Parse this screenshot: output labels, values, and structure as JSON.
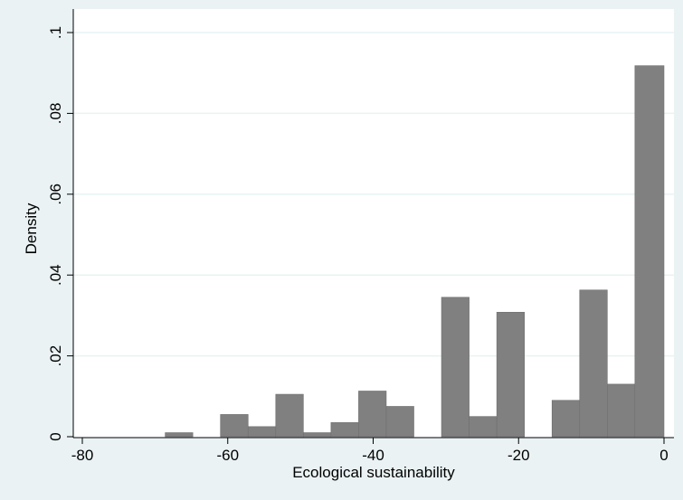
{
  "chart_data": {
    "type": "bar",
    "title": "",
    "xlabel": "Ecological sustainability",
    "ylabel": "Density",
    "xlim": [
      -80,
      0
    ],
    "ylim": [
      0,
      0.1
    ],
    "grid": true,
    "x_ticks": [
      -80,
      -60,
      -40,
      -20,
      0
    ],
    "x_tick_labels": [
      "-80",
      "-60",
      "-40",
      "-20",
      "0"
    ],
    "y_ticks": [
      0,
      0.02,
      0.04,
      0.06,
      0.08,
      0.1
    ],
    "y_tick_labels": [
      "0",
      ".02",
      ".04",
      ".06",
      ".08",
      ".1"
    ],
    "bin_width": 3.8,
    "bins": [
      {
        "x0": -80.0,
        "x1": -76.2,
        "value": 0.0
      },
      {
        "x0": -76.2,
        "x1": -72.4,
        "value": 0.0
      },
      {
        "x0": -72.4,
        "x1": -68.6,
        "value": 0.0
      },
      {
        "x0": -68.6,
        "x1": -64.8,
        "value": 0.001
      },
      {
        "x0": -64.8,
        "x1": -61.0,
        "value": 0.0
      },
      {
        "x0": -61.0,
        "x1": -57.2,
        "value": 0.0055
      },
      {
        "x0": -57.2,
        "x1": -53.4,
        "value": 0.0025
      },
      {
        "x0": -53.4,
        "x1": -49.6,
        "value": 0.0105
      },
      {
        "x0": -49.6,
        "x1": -45.8,
        "value": 0.001
      },
      {
        "x0": -45.8,
        "x1": -42.0,
        "value": 0.0035
      },
      {
        "x0": -42.0,
        "x1": -38.2,
        "value": 0.0113
      },
      {
        "x0": -38.2,
        "x1": -34.4,
        "value": 0.0075
      },
      {
        "x0": -34.4,
        "x1": -30.6,
        "value": 0.0
      },
      {
        "x0": -30.6,
        "x1": -26.8,
        "value": 0.0345
      },
      {
        "x0": -26.8,
        "x1": -23.0,
        "value": 0.005
      },
      {
        "x0": -23.0,
        "x1": -19.2,
        "value": 0.0308
      },
      {
        "x0": -19.2,
        "x1": -15.4,
        "value": 0.0
      },
      {
        "x0": -15.4,
        "x1": -11.6,
        "value": 0.009
      },
      {
        "x0": -11.6,
        "x1": -7.8,
        "value": 0.0363
      },
      {
        "x0": -7.8,
        "x1": -4.0,
        "value": 0.013
      },
      {
        "x0": -4.0,
        "x1": 0.0,
        "value": 0.0918
      }
    ],
    "colors": {
      "bar_fill": "#808080",
      "bar_stroke": "#6e6e6e",
      "plot_background": "#ffffff",
      "outer_background": "#eaf2f3",
      "grid": "#eaf2f3",
      "axis": "#000000"
    }
  }
}
